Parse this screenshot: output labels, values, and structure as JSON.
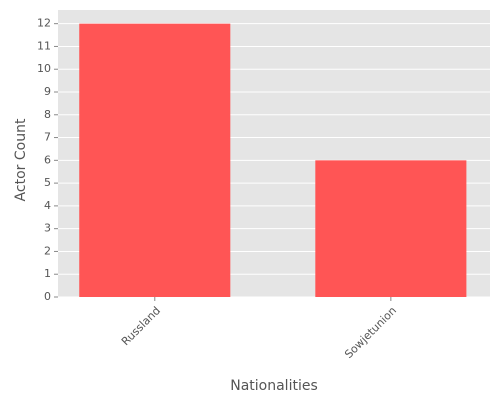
{
  "chart_data": {
    "type": "bar",
    "categories": [
      "Russland",
      "Sowjetunion"
    ],
    "values": [
      12,
      6
    ],
    "color": "#ff5555",
    "xlabel": "Nationalities",
    "ylabel": "Actor Count",
    "ylim": [
      0,
      12.6
    ],
    "yticks": [
      0,
      1,
      2,
      3,
      4,
      5,
      6,
      7,
      8,
      9,
      10,
      11,
      12
    ],
    "grid": true
  }
}
